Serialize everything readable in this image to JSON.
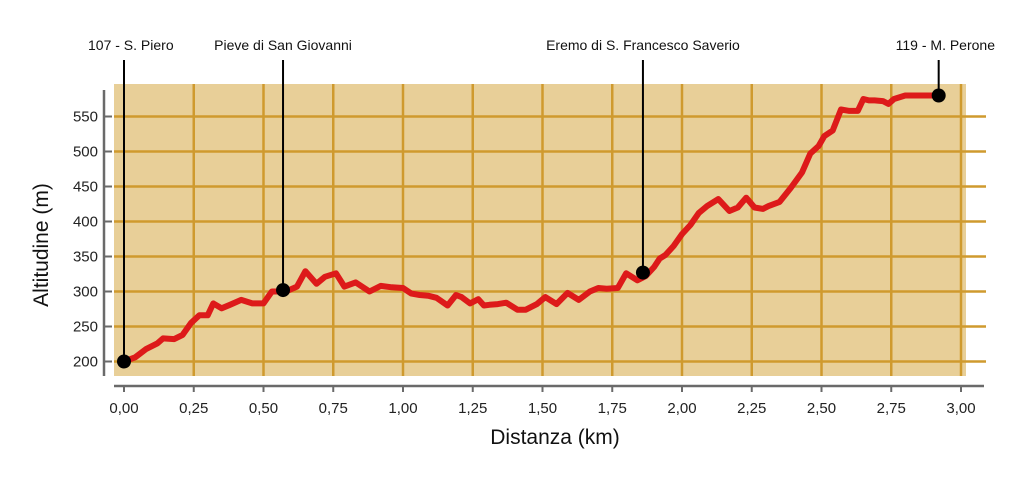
{
  "chart_data": {
    "type": "line",
    "title": "",
    "xlabel": "Distanza (km)",
    "ylabel": "Altitudine (m)",
    "xlim": [
      0,
      3.0
    ],
    "ylim": [
      185,
      595
    ],
    "grid": true,
    "colors": {
      "plot_bg": "#e8cf98",
      "grid": "#cf9a2e",
      "line": "#dd1a1a",
      "marker": "#000000",
      "axis": "#6a6a6a"
    },
    "x_ticks": [
      0,
      0.25,
      0.5,
      0.75,
      1.0,
      1.25,
      1.5,
      1.75,
      2.0,
      2.25,
      2.5,
      2.75,
      3.0
    ],
    "x_tick_labels": [
      "0,00",
      "0,25",
      "0,50",
      "0,75",
      "1,00",
      "1,25",
      "1,50",
      "1,75",
      "2,00",
      "2,25",
      "2,50",
      "2,75",
      "3,00"
    ],
    "y_ticks": [
      200,
      250,
      300,
      350,
      400,
      450,
      500,
      550
    ],
    "y_tick_labels": [
      "200",
      "250",
      "300",
      "350",
      "400",
      "450",
      "500",
      "550"
    ],
    "series": [
      {
        "x": [
          0.0,
          0.04,
          0.08,
          0.12,
          0.14,
          0.18,
          0.21,
          0.24,
          0.27,
          0.3,
          0.32,
          0.35,
          0.38,
          0.42,
          0.46,
          0.5,
          0.53,
          0.555,
          0.58,
          0.62,
          0.65,
          0.69,
          0.72,
          0.76,
          0.79,
          0.83,
          0.88,
          0.92,
          0.96,
          1.0,
          1.03,
          1.06,
          1.09,
          1.12,
          1.16,
          1.19,
          1.21,
          1.24,
          1.27,
          1.29,
          1.31,
          1.34,
          1.37,
          1.41,
          1.44,
          1.48,
          1.51,
          1.55,
          1.59,
          1.63,
          1.67,
          1.7,
          1.73,
          1.77,
          1.8,
          1.84,
          1.87,
          1.9,
          1.92,
          1.94,
          1.97,
          2.0,
          2.03,
          2.06,
          2.09,
          2.13,
          2.17,
          2.2,
          2.23,
          2.26,
          2.29,
          2.31,
          2.35,
          2.39,
          2.43,
          2.46,
          2.49,
          2.51,
          2.54,
          2.57,
          2.6,
          2.63,
          2.65,
          2.67,
          2.69,
          2.72,
          2.74,
          2.76,
          2.8,
          2.84,
          2.87,
          2.91,
          2.92
        ],
        "values": [
          200,
          206,
          218,
          226,
          233,
          232,
          238,
          255,
          266,
          266,
          283,
          276,
          281,
          288,
          283,
          283,
          300,
          300,
          300,
          307,
          329,
          311,
          321,
          326,
          307,
          313,
          300,
          308,
          306,
          305,
          297,
          295,
          294,
          291,
          280,
          295,
          292,
          283,
          289,
          280,
          281,
          282,
          284,
          274,
          274,
          282,
          292,
          282,
          298,
          288,
          300,
          305,
          304,
          305,
          326,
          316,
          322,
          335,
          347,
          352,
          365,
          382,
          395,
          412,
          422,
          432,
          415,
          420,
          434,
          420,
          418,
          422,
          428,
          448,
          470,
          497,
          508,
          522,
          530,
          560,
          558,
          558,
          575,
          573,
          573,
          572,
          568,
          575,
          580,
          580,
          580,
          580,
          580
        ],
        "markers": [
          {
            "x": 0.0,
            "y": 200
          },
          {
            "x": 0.57,
            "y": 302
          },
          {
            "x": 1.86,
            "y": 327
          },
          {
            "x": 2.92,
            "y": 580
          }
        ]
      }
    ],
    "annotations": [
      {
        "text": "107 - S. Piero",
        "x": 0.0
      },
      {
        "text": "Pieve di San Giovanni",
        "x": 0.57
      },
      {
        "text": "Eremo di S. Francesco Saverio",
        "x": 1.86
      },
      {
        "text": "119 - M. Perone",
        "x": 2.92
      }
    ]
  }
}
